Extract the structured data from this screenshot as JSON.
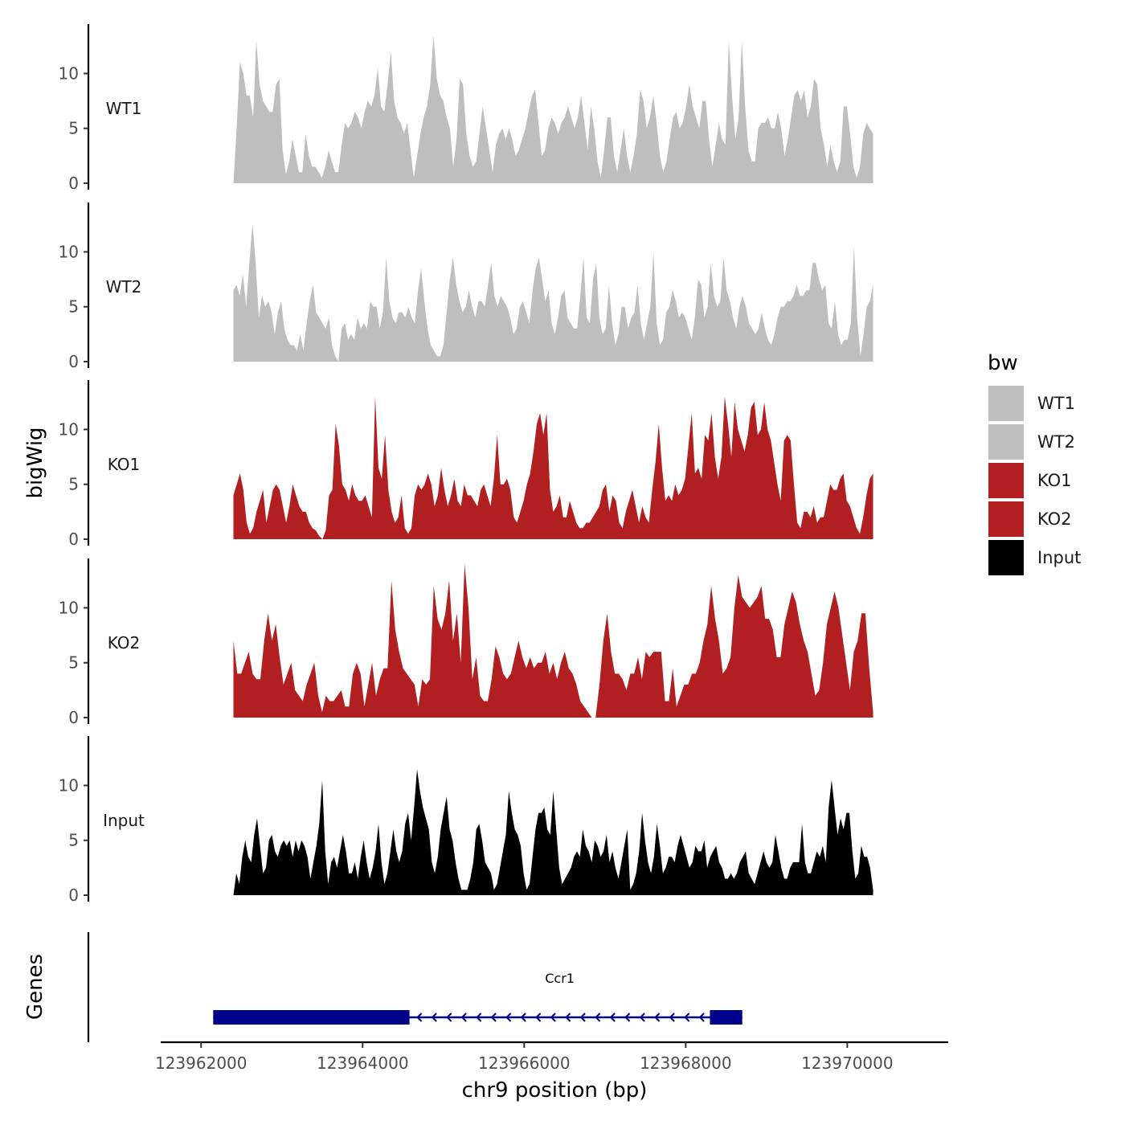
{
  "chart_data": {
    "type": "area",
    "region": {
      "chromosome": "chr9",
      "start": 123962000,
      "end": 123970600
    },
    "data_start": 123962400,
    "data_end": 123970320,
    "xlim": [
      123961500,
      123971250
    ],
    "x_ticks": [
      123962000,
      123964000,
      123966000,
      123968000,
      123970000
    ],
    "x_tick_labels": [
      "123962000",
      "123964000",
      "123966000",
      "123968000",
      "123970000"
    ],
    "xlabel": "chr9 position (bp)",
    "ylabel": "bigWig",
    "ylabel_genes": "Genes",
    "ylim": [
      0,
      14.5
    ],
    "y_ticks": [
      0,
      5,
      10
    ],
    "y_tick_labels": [
      "0",
      "5",
      "10"
    ],
    "series": [
      {
        "name": "WT1",
        "color": "#bebebe",
        "values": [
          0,
          5,
          11,
          10,
          8,
          8,
          6,
          13,
          9,
          7.5,
          7,
          6.5,
          6.5,
          9,
          9.5,
          3,
          0.8,
          2,
          4,
          2.5,
          1,
          1,
          4.5,
          2.5,
          1.5,
          1.5,
          1,
          0.5,
          1.5,
          3,
          2,
          1,
          1,
          3.5,
          5.5,
          5,
          5.5,
          6.5,
          6,
          5,
          6.5,
          7.5,
          7,
          8,
          10.5,
          7,
          6.5,
          9,
          12,
          7.5,
          6,
          5.5,
          4.5,
          5.5,
          3,
          0.5,
          2.5,
          4.5,
          6,
          7,
          9,
          13.5,
          9.5,
          8,
          7.5,
          6,
          5,
          1.5,
          4,
          9.5,
          9,
          4.5,
          2.5,
          1.5,
          2,
          4.5,
          7,
          5,
          3,
          1,
          3.5,
          4.5,
          5,
          4,
          5,
          4,
          2.5,
          3,
          4,
          5,
          6.5,
          8,
          8.5,
          5.5,
          2.5,
          3,
          5,
          6,
          5.5,
          4.5,
          5.5,
          6,
          7,
          6,
          5,
          6,
          8,
          5.5,
          3,
          7,
          5,
          2,
          0.5,
          3,
          6,
          6,
          2.5,
          1,
          3,
          5,
          2.5,
          1,
          2.5,
          4.5,
          8.5,
          7.5,
          5,
          6,
          8,
          5.5,
          2.5,
          1,
          2,
          4,
          6,
          6.5,
          5,
          5.5,
          7,
          9,
          7,
          6,
          5,
          7.5,
          7.5,
          4,
          1.5,
          3.5,
          5.5,
          4,
          3.5,
          13,
          8,
          4,
          6,
          13,
          7,
          3,
          2,
          2,
          5,
          5.5,
          5.5,
          6,
          5,
          5,
          6.5,
          5,
          2.5,
          4,
          6,
          8,
          8.5,
          7.5,
          8.5,
          6,
          7,
          9.5,
          9,
          5,
          3.5,
          1.5,
          3.5,
          2,
          1,
          2,
          7,
          7,
          4.5,
          1.5,
          0.5,
          1.5,
          4.5,
          5.5,
          5,
          4.5
        ]
      },
      {
        "name": "WT2",
        "color": "#bebebe",
        "values": [
          6.5,
          7,
          6,
          8,
          5,
          9,
          12.5,
          9,
          4,
          6,
          5,
          5.5,
          4.5,
          2.5,
          4.5,
          5.5,
          3,
          2,
          1.5,
          1.5,
          1,
          2.5,
          1,
          3.5,
          5.5,
          7,
          4.5,
          4,
          3.5,
          3,
          4,
          1.5,
          0.5,
          0,
          3,
          3.5,
          2,
          2.5,
          2,
          4,
          3,
          3.5,
          3,
          5.5,
          5,
          5,
          3,
          4.5,
          9.5,
          5.5,
          4,
          3.5,
          4.5,
          4.5,
          4,
          5,
          4,
          3.5,
          6.5,
          8.5,
          5.5,
          3,
          1.5,
          1,
          0.5,
          0.5,
          1.5,
          4.5,
          7.5,
          9.5,
          7,
          5.5,
          4.5,
          5,
          6.5,
          5,
          4,
          5.5,
          5.5,
          5,
          7,
          9,
          6,
          5,
          6,
          5.5,
          5,
          4,
          2.5,
          3,
          5,
          5.5,
          4.5,
          3.5,
          6.5,
          8.5,
          9.5,
          7.5,
          5.5,
          6.5,
          3.5,
          2.5,
          4,
          6,
          6.5,
          4,
          3.5,
          3,
          3,
          6,
          9.5,
          4,
          3.5,
          7.5,
          9,
          4,
          2.5,
          3,
          7,
          3.5,
          1.5,
          2.5,
          5,
          5,
          3,
          4,
          4.5,
          7,
          3.5,
          2,
          3.5,
          5,
          10,
          3.5,
          1.5,
          2,
          4.5,
          5,
          6.5,
          5.5,
          4,
          4.5,
          4,
          3,
          2,
          4,
          7.5,
          7,
          4,
          5,
          9,
          6,
          5,
          5.5,
          9.5,
          6.5,
          5.5,
          4,
          3,
          5,
          6,
          5,
          3.5,
          3,
          2.5,
          3,
          4.5,
          3,
          2,
          1.5,
          2.5,
          4,
          5,
          5,
          5.5,
          5.5,
          6,
          7,
          6,
          6,
          6.5,
          6.5,
          9,
          9,
          7.5,
          6.5,
          7,
          3.5,
          3,
          5.5,
          2.5,
          1.5,
          2,
          2,
          3.5,
          10.5,
          4,
          0.5,
          2.5,
          5,
          5.5,
          7
        ]
      },
      {
        "name": "KO1",
        "color": "#b21f21",
        "values": [
          4,
          5,
          6,
          4.5,
          1.5,
          0.5,
          1,
          2.5,
          3.5,
          4.5,
          1.5,
          3,
          4.5,
          5,
          4.5,
          3,
          1.5,
          3,
          5,
          4,
          3,
          2.5,
          2.5,
          1.5,
          1,
          0.8,
          0.3,
          0,
          0.8,
          4,
          4.5,
          10.5,
          8.5,
          5,
          4.5,
          3.5,
          5,
          4,
          3.5,
          3.5,
          4,
          3,
          2,
          13,
          6.5,
          5.5,
          9.5,
          4.5,
          2.5,
          1.5,
          2,
          4,
          1,
          0.5,
          1,
          4,
          5,
          4.5,
          5,
          6,
          5,
          3,
          4,
          6.5,
          4.5,
          3,
          4,
          5.5,
          3.5,
          3,
          5,
          4,
          4,
          3.5,
          3,
          4.5,
          5,
          4,
          3,
          5.5,
          9.5,
          5,
          5,
          5.5,
          4.5,
          2,
          1.5,
          2.5,
          3.5,
          5,
          6,
          8,
          10.5,
          11.5,
          9.5,
          11.5,
          4.5,
          2.5,
          3,
          4,
          2,
          2,
          3.5,
          2.5,
          1.5,
          1,
          1,
          1.5,
          1.5,
          2,
          2.5,
          3,
          4.5,
          5,
          2.5,
          4,
          3.5,
          1.5,
          1,
          2.5,
          3.5,
          4.5,
          3,
          1.5,
          3,
          2,
          1.5,
          4.5,
          7,
          10.5,
          6.5,
          3.5,
          4,
          3.5,
          5,
          4,
          4.5,
          5.5,
          8.5,
          11.5,
          6,
          6.5,
          5.5,
          9.5,
          9,
          11.5,
          7.5,
          5.5,
          7.5,
          13,
          10.5,
          7.5,
          12.5,
          10,
          9,
          8,
          9.5,
          12,
          12.5,
          9.5,
          10,
          12.5,
          10,
          9,
          7,
          5,
          3.5,
          9,
          9.5,
          9,
          5,
          1.5,
          1,
          2.5,
          2.5,
          2,
          3,
          1.5,
          2,
          2,
          3.5,
          5,
          4.5,
          4.5,
          5.5,
          6,
          3.5,
          3,
          2,
          1,
          0.5,
          2,
          4,
          5.5,
          6
        ]
      },
      {
        "name": "KO2",
        "color": "#b21f21",
        "values": [
          7,
          4,
          4,
          5,
          6,
          4,
          3.5,
          3.5,
          7,
          9.5,
          7,
          8.5,
          5.5,
          3,
          4,
          5,
          2.5,
          2,
          1.5,
          3,
          4,
          5,
          2,
          0.5,
          2,
          1.5,
          1.5,
          2,
          2.5,
          1,
          1,
          4,
          5,
          4,
          1,
          3,
          5,
          2,
          3.5,
          4.5,
          4.5,
          12.5,
          8,
          6,
          4.5,
          4,
          3.5,
          3,
          1,
          3.5,
          3,
          3.5,
          12,
          9,
          8,
          9.5,
          12.5,
          7,
          9.5,
          5,
          14,
          10,
          3.5,
          5.5,
          2,
          1.5,
          1.5,
          3.5,
          6.5,
          5.5,
          4,
          3.5,
          4,
          5.5,
          7,
          5.5,
          4.5,
          5.5,
          4.5,
          5,
          5,
          6,
          4,
          5,
          3.5,
          5,
          6,
          4.5,
          4,
          3,
          1.5,
          1,
          0.5,
          0,
          0,
          3,
          7,
          9.5,
          6,
          4,
          4,
          3.5,
          2.5,
          4,
          4,
          5.5,
          3.5,
          6,
          5.5,
          6,
          6,
          6,
          1.5,
          1.5,
          4.5,
          1,
          2,
          3,
          3,
          4,
          4,
          5,
          7,
          8.5,
          12,
          9,
          7,
          4,
          4.5,
          5.5,
          10,
          13,
          11,
          10.5,
          10,
          10.5,
          11,
          12,
          9,
          9,
          8,
          5.5,
          5.5,
          8.5,
          10,
          11.5,
          10.5,
          8.5,
          7,
          6,
          4,
          2,
          2.5,
          5,
          8.5,
          10,
          11.5,
          10,
          7.5,
          5,
          2.5,
          6,
          7,
          9.5,
          9.5,
          4.5,
          0.5
        ]
      },
      {
        "name": "Input",
        "color": "#000000",
        "values": [
          0,
          2,
          1,
          3.5,
          5,
          3.5,
          3,
          5.5,
          7,
          4.5,
          2,
          2.5,
          5,
          5.5,
          4,
          3.5,
          4.5,
          5,
          4.5,
          5,
          3.5,
          5,
          4,
          5,
          4.5,
          3.5,
          1.5,
          3,
          4.5,
          6.5,
          10.5,
          4,
          1,
          3,
          3.5,
          2.5,
          4,
          5.5,
          4,
          2,
          2,
          3,
          1.5,
          3.5,
          5,
          3,
          1.5,
          2.5,
          4,
          6.5,
          3,
          1,
          2,
          4,
          6,
          4,
          3,
          4,
          6.5,
          7.5,
          5,
          8,
          11.5,
          9.5,
          8,
          7,
          6,
          3,
          2,
          3.5,
          6,
          7.5,
          9,
          6,
          5,
          3,
          1.5,
          0.5,
          0.5,
          0.5,
          1.5,
          3,
          6,
          6.5,
          5,
          3,
          2.5,
          2,
          0.5,
          1,
          2.5,
          4,
          5.5,
          9.5,
          7.5,
          6,
          5.5,
          4.5,
          2,
          0.5,
          1,
          3.5,
          6,
          7.5,
          7.5,
          8,
          6,
          5.5,
          9.5,
          6,
          2.5,
          1,
          1.5,
          2,
          2.5,
          3.5,
          4,
          3.5,
          6,
          4.5,
          4,
          3,
          5,
          4.5,
          3.5,
          4,
          5.5,
          3,
          4,
          2.5,
          1.5,
          3,
          4.5,
          6,
          0.5,
          1,
          2,
          4,
          7.5,
          5,
          3,
          2,
          3.5,
          6.5,
          4.5,
          2,
          2.5,
          3.5,
          3.5,
          3,
          4.5,
          5.5,
          4.5,
          3.5,
          2.5,
          3,
          4.5,
          4,
          4,
          5,
          2.5,
          3.5,
          4,
          4.5,
          3,
          2.5,
          1.5,
          1.5,
          2,
          1.5,
          2,
          3,
          3.5,
          4,
          2,
          1.5,
          1,
          2,
          3,
          4,
          3,
          2.5,
          3,
          5.5,
          4,
          2.5,
          1.5,
          1.5,
          2.5,
          3,
          3,
          3,
          6.5,
          3,
          2,
          2,
          3,
          4,
          3.5,
          4.5,
          3,
          8,
          10.5,
          8,
          5.5,
          7,
          6,
          7.5,
          7.5,
          4,
          1.5,
          2,
          4.5,
          3.5,
          3.5,
          2.5,
          0.5
        ]
      }
    ],
    "legend": {
      "title": "bw",
      "position": "right",
      "entries": [
        {
          "label": "WT1",
          "color": "#bebebe"
        },
        {
          "label": "WT2",
          "color": "#bebebe"
        },
        {
          "label": "KO1",
          "color": "#b21f21"
        },
        {
          "label": "KO2",
          "color": "#b21f21"
        },
        {
          "label": "Input",
          "color": "#000000"
        }
      ]
    },
    "gene": {
      "name": "Ccr1",
      "strand": "-",
      "color": "#00008b",
      "start": 123962150,
      "end": 123968700,
      "exons": [
        {
          "start": 123962150,
          "end": 123964580
        },
        {
          "start": 123968300,
          "end": 123968700
        }
      ]
    }
  }
}
